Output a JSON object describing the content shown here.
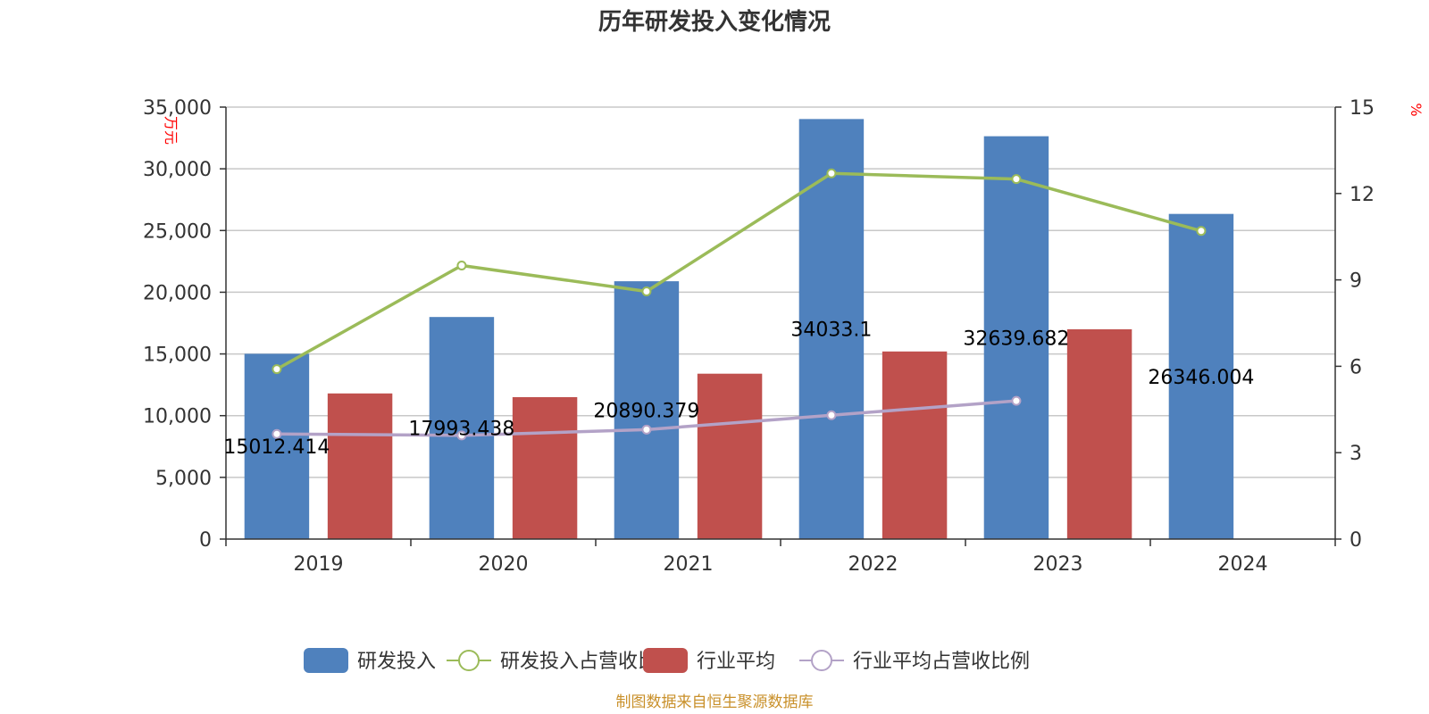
{
  "chart_data": {
    "type": "bar",
    "title": "历年研发投入变化情况",
    "categories": [
      "2019",
      "2020",
      "2021",
      "2022",
      "2023",
      "2024"
    ],
    "y_left": {
      "unit": "万元",
      "min": 0,
      "max": 35000,
      "ticks": [
        "0",
        "5,000",
        "10,000",
        "15,000",
        "20,000",
        "25,000",
        "30,000",
        "35,000"
      ]
    },
    "y_right": {
      "unit": "%",
      "min": 0,
      "max": 15,
      "ticks": [
        "0",
        "3",
        "6",
        "9",
        "12",
        "15"
      ]
    },
    "grid": true,
    "legend_position": "bottom",
    "series": [
      {
        "name": "研发投入",
        "kind": "bar",
        "axis": "left",
        "color": "#4f81bd",
        "values": [
          15012.414,
          17993.438,
          20890.379,
          34033.1,
          32639.682,
          26346.004
        ],
        "labels": [
          "15012.414",
          "17993.438",
          "20890.379",
          "34033.1",
          "32639.682",
          "26346.004"
        ]
      },
      {
        "name": "研发投入占营收比例",
        "kind": "line",
        "axis": "right",
        "color": "#9bbb59",
        "values": [
          5.9,
          9.5,
          8.6,
          12.7,
          12.5,
          10.7
        ]
      },
      {
        "name": "行业平均",
        "kind": "bar",
        "axis": "left",
        "color": "#c0504d",
        "values": [
          11800,
          11500,
          13400,
          15200,
          17000,
          null
        ]
      },
      {
        "name": "行业平均占营收比例",
        "kind": "line",
        "axis": "right",
        "color": "#b3a2c7",
        "values": [
          3.65,
          3.6,
          3.8,
          4.3,
          4.8,
          null
        ]
      }
    ],
    "source": "制图数据来自恒生聚源数据库"
  }
}
